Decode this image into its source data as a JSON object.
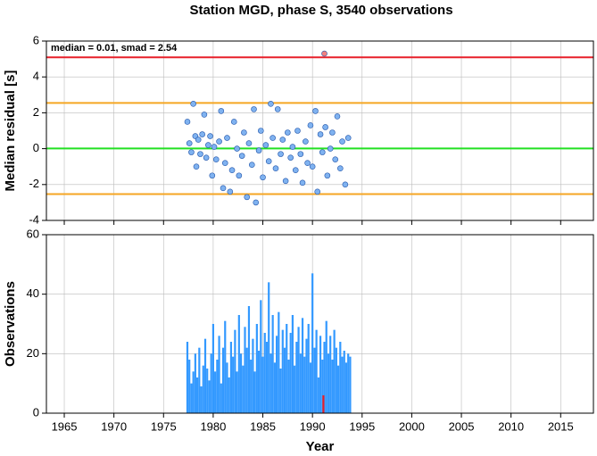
{
  "title": "Station MGD, phase S, 3540 observations",
  "chart_data": [
    {
      "type": "scatter",
      "ylabel": "Median residual [s]",
      "annotation": "median = 0.01, smad = 2.54",
      "ylim": [
        -4,
        6
      ],
      "yticks": [
        -4,
        -2,
        0,
        2,
        4,
        6
      ],
      "grid": true,
      "hlines": [
        {
          "value": 5.09,
          "color": "#e8202a"
        },
        {
          "value": 2.55,
          "color": "#f5a623"
        },
        {
          "value": 0.01,
          "color": "#22e022"
        },
        {
          "value": -2.53,
          "color": "#f5a623"
        }
      ],
      "series": [
        {
          "color": "#7fb2f0",
          "x": [
            1977.4,
            1977.6,
            1977.8,
            1978.0,
            1978.2,
            1978.3,
            1978.5,
            1978.7,
            1978.9,
            1979.1,
            1979.3,
            1979.5,
            1979.7,
            1979.9,
            1980.1,
            1980.3,
            1980.6,
            1980.8,
            1981.0,
            1981.2,
            1981.4,
            1981.7,
            1981.9,
            1982.1,
            1982.4,
            1982.6,
            1982.9,
            1983.1,
            1983.4,
            1983.6,
            1983.9,
            1984.1,
            1984.3,
            1984.6,
            1984.8,
            1985.0,
            1985.3,
            1985.6,
            1985.8,
            1986.0,
            1986.3,
            1986.5,
            1986.8,
            1987.0,
            1987.3,
            1987.5,
            1987.8,
            1988.0,
            1988.3,
            1988.5,
            1988.8,
            1989.0,
            1989.3,
            1989.5,
            1989.8,
            1990.0,
            1990.3,
            1990.5,
            1990.8,
            1991.0,
            1991.3,
            1991.5,
            1991.8,
            1992.0,
            1992.3,
            1992.5,
            1992.8,
            1993.0,
            1993.3,
            1993.6
          ],
          "values": [
            1.5,
            0.3,
            -0.2,
            2.5,
            0.7,
            -1.0,
            0.5,
            -0.3,
            0.8,
            1.9,
            -0.5,
            0.2,
            0.7,
            -1.5,
            0.1,
            -0.6,
            0.4,
            2.1,
            -2.2,
            -0.8,
            0.6,
            -2.4,
            -1.2,
            1.5,
            0.0,
            -1.5,
            -0.4,
            0.9,
            -2.7,
            0.3,
            -0.9,
            2.2,
            -3.0,
            -0.1,
            1.0,
            -1.6,
            0.2,
            -0.7,
            2.5,
            0.6,
            -1.1,
            2.2,
            -0.3,
            0.5,
            -1.8,
            0.9,
            -0.5,
            0.1,
            -1.2,
            1.0,
            -0.3,
            -1.9,
            0.4,
            -0.8,
            1.3,
            -1.0,
            2.1,
            -2.4,
            0.8,
            -0.2,
            1.2,
            -1.5,
            0.0,
            0.9,
            -0.6,
            1.8,
            -1.1,
            0.4,
            -2.0,
            0.6
          ]
        },
        {
          "color": "#f08080",
          "x": [
            1991.2
          ],
          "values": [
            5.3
          ]
        }
      ]
    },
    {
      "type": "bar",
      "xlabel": "Year",
      "ylabel": "Observations",
      "xlim": [
        1963.2,
        2018.3
      ],
      "xticks": [
        1965,
        1970,
        1975,
        1980,
        1985,
        1990,
        1995,
        2000,
        2005,
        2010,
        2015
      ],
      "ylim": [
        0,
        60
      ],
      "yticks": [
        0,
        20,
        40,
        60
      ],
      "grid": true,
      "series": [
        {
          "color": "#3399ff",
          "x": [
            1977.4,
            1977.6,
            1977.8,
            1978.0,
            1978.2,
            1978.4,
            1978.6,
            1978.8,
            1979.0,
            1979.2,
            1979.4,
            1979.6,
            1979.8,
            1980.0,
            1980.2,
            1980.4,
            1980.6,
            1980.8,
            1981.0,
            1981.2,
            1981.4,
            1981.6,
            1981.8,
            1982.0,
            1982.2,
            1982.4,
            1982.6,
            1982.8,
            1983.0,
            1983.2,
            1983.4,
            1983.6,
            1983.8,
            1984.0,
            1984.2,
            1984.4,
            1984.6,
            1984.8,
            1985.0,
            1985.2,
            1985.4,
            1985.6,
            1985.8,
            1986.0,
            1986.2,
            1986.4,
            1986.6,
            1986.8,
            1987.0,
            1987.2,
            1987.4,
            1987.6,
            1987.8,
            1988.0,
            1988.2,
            1988.4,
            1988.6,
            1988.8,
            1989.0,
            1989.2,
            1989.4,
            1989.6,
            1989.8,
            1990.0,
            1990.2,
            1990.4,
            1990.6,
            1990.8,
            1991.0,
            1991.2,
            1991.4,
            1991.6,
            1991.8,
            1992.0,
            1992.2,
            1992.4,
            1992.6,
            1992.8,
            1993.0,
            1993.2,
            1993.4,
            1993.6,
            1993.8
          ],
          "values": [
            24,
            18,
            10,
            14,
            20,
            12,
            22,
            9,
            16,
            25,
            15,
            11,
            20,
            30,
            14,
            18,
            26,
            10,
            22,
            31,
            17,
            12,
            24,
            19,
            28,
            14,
            33,
            20,
            16,
            29,
            22,
            36,
            18,
            25,
            14,
            30,
            21,
            38,
            19,
            27,
            24,
            44,
            20,
            33,
            17,
            26,
            34,
            15,
            28,
            22,
            30,
            18,
            27,
            33,
            16,
            24,
            29,
            20,
            32,
            19,
            25,
            30,
            17,
            47,
            22,
            28,
            12,
            26,
            18,
            24,
            31,
            20,
            26,
            18,
            28,
            22,
            16,
            24,
            19,
            21,
            17,
            20,
            19
          ]
        },
        {
          "color": "#e8202a",
          "x": [
            1991.1
          ],
          "values": [
            6
          ]
        }
      ]
    }
  ]
}
